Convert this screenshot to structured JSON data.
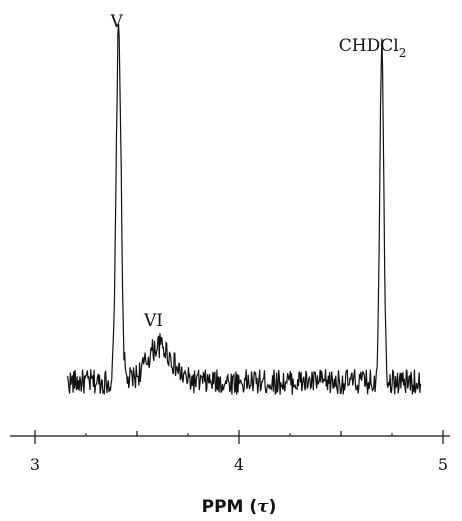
{
  "chart_data": {
    "type": "line",
    "title": "",
    "xlabel": "PPM (τ)",
    "xlabel_parts": {
      "pre": "PPM (",
      "var": "τ",
      "post": ")"
    },
    "ylabel": "",
    "xlim": [
      2.85,
      5.05
    ],
    "ylim": [
      0,
      1
    ],
    "grid": false,
    "x_ticks_major": [
      3,
      4,
      5
    ],
    "x_tick_labels": [
      "3",
      "4",
      "5"
    ],
    "x_ticks_minor": [
      3.5,
      4.5
    ],
    "trace_x_range": [
      3.16,
      4.89
    ],
    "baseline_level": 0.06,
    "noise_amplitude": 0.035,
    "peaks": [
      {
        "label": "V",
        "x": 3.41,
        "height": 0.97,
        "width": 0.012,
        "label_html": "V"
      },
      {
        "label": "VI",
        "x": 3.61,
        "height": 0.1,
        "width": 0.06,
        "label_html": "VI"
      },
      {
        "label": "CHDCl2",
        "label_main": "CHDCl",
        "label_sub": "2",
        "x": 4.7,
        "height": 0.92,
        "width": 0.01
      }
    ]
  }
}
